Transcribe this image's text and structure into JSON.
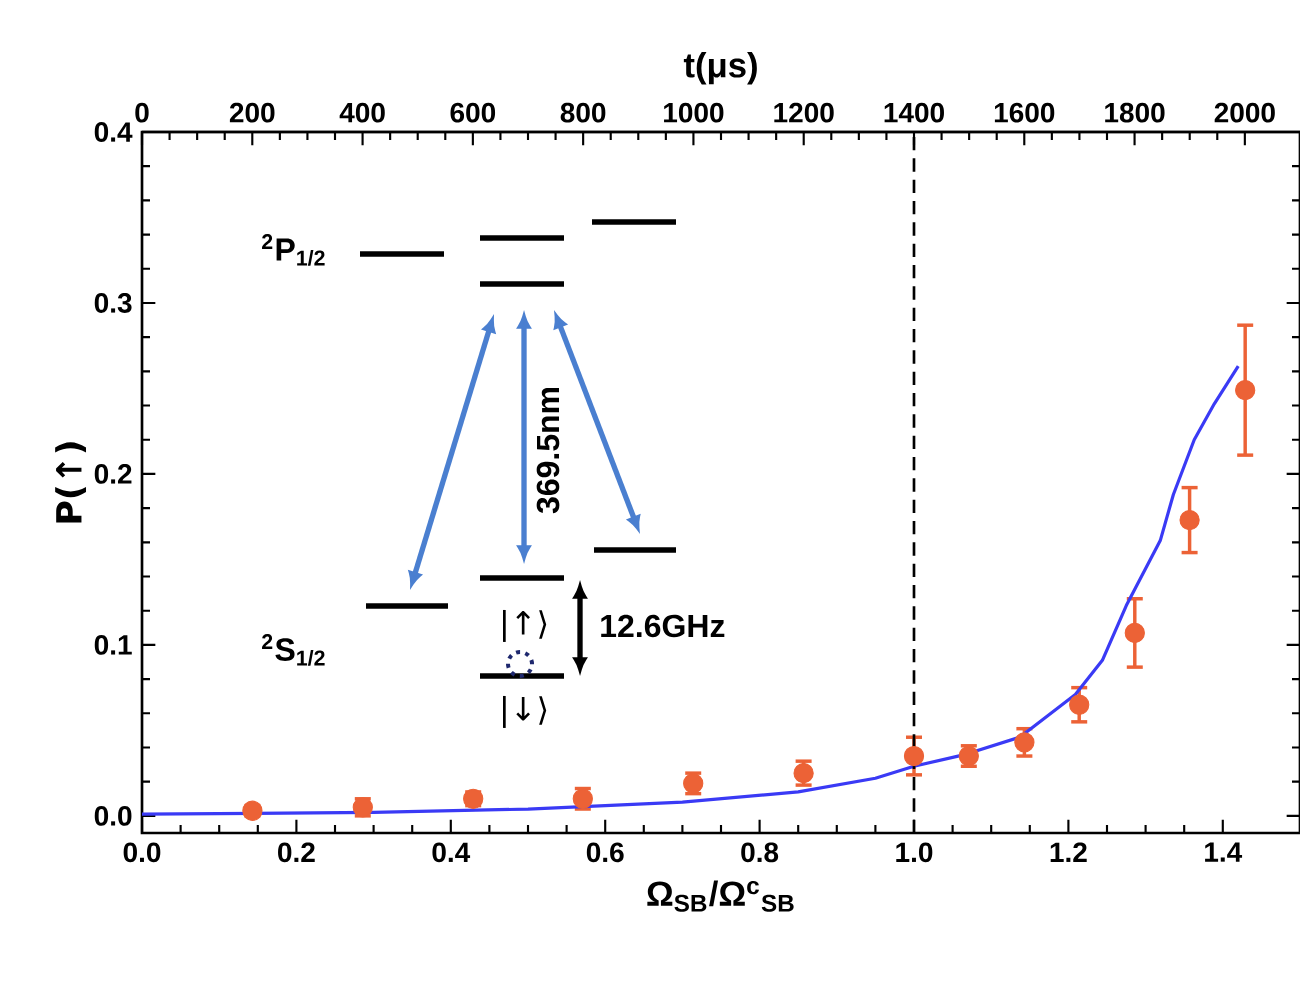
{
  "chart_data": {
    "type": "scatter",
    "xlabel": "Ω$_{SB}$/Ω$^{c}$$_{SB}$",
    "ylabel": "P(↑)",
    "x2label": "t(μs)",
    "xlim": [
      0,
      1.5
    ],
    "ylim": [
      -0.01,
      0.4
    ],
    "x2lim": [
      0,
      2100
    ],
    "xticks": [
      {
        "value": 0,
        "label": "0.0"
      },
      0.2,
      0.4,
      0.6,
      0.8,
      {
        "value": 1,
        "label": "1.0"
      },
      1.2,
      1.4
    ],
    "yticks": [
      {
        "value": 0,
        "label": "0.0"
      },
      0.1,
      0.2,
      0.3,
      0.4
    ],
    "x2ticks": [
      0,
      200,
      400,
      600,
      800,
      1000,
      1200,
      1400,
      1600,
      1800,
      2000
    ],
    "series": [
      {
        "color": "#ec6236",
        "x": [
          0.143,
          0.286,
          0.429,
          0.571,
          0.714,
          0.857,
          1.0,
          1.071,
          1.143,
          1.214,
          1.286,
          1.357,
          1.429
        ],
        "values": [
          0.003,
          0.005,
          0.01,
          0.01,
          0.019,
          0.025,
          0.035,
          0.035,
          0.043,
          0.065,
          0.107,
          0.173,
          0.249
        ],
        "errors": [
          0.003,
          0.005,
          0.004,
          0.006,
          0.006,
          0.007,
          0.011,
          0.006,
          0.008,
          0.01,
          0.02,
          0.019,
          0.038
        ]
      },
      {
        "type": "line",
        "color": "#3a3af5",
        "marker": "none",
        "x": [
          0,
          0.3,
          0.5,
          0.7,
          0.85,
          0.95,
          1.0,
          1.067,
          1.137,
          1.209,
          1.244,
          1.275,
          1.319,
          1.336,
          1.363,
          1.389,
          1.42
        ],
        "values": [
          0.001,
          0.002,
          0.004,
          0.008,
          0.014,
          0.022,
          0.029,
          0.036,
          0.046,
          0.071,
          0.091,
          0.123,
          0.161,
          0.188,
          0.22,
          0.241,
          0.263
        ]
      }
    ],
    "marker": "circle",
    "ref_lines": [
      {
        "axis": "x",
        "value": 1.0,
        "color": "#000000",
        "line_style": "dashed"
      }
    ],
    "annotations": [
      "$^{2}$P$_{1/2}$",
      "$^{2}$S$_{1/2}$",
      "369.5nm",
      "12.6GHz",
      "|↑⟩",
      "|↓⟩"
    ]
  }
}
